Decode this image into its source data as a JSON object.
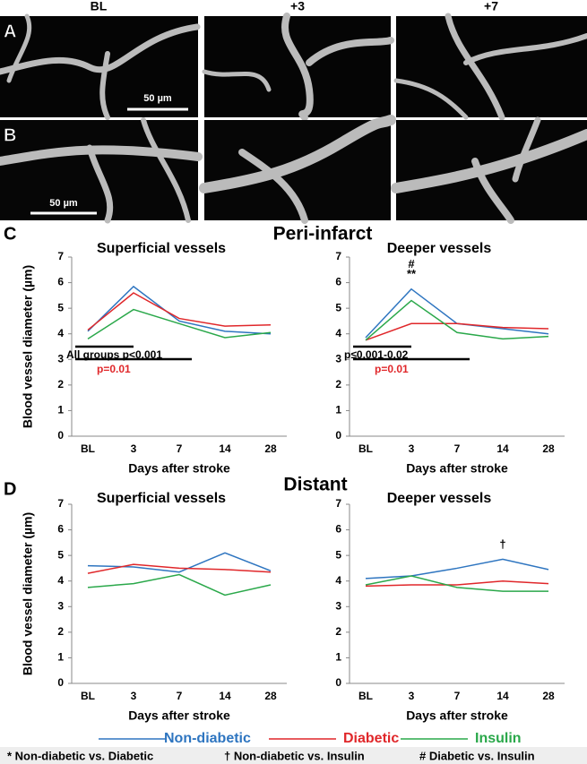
{
  "panels": {
    "A": "A",
    "B": "B",
    "C": "C",
    "D": "D"
  },
  "columns": [
    "BL",
    "+3",
    "+7"
  ],
  "scale_bars": [
    "50 µm",
    "50 µm"
  ],
  "sections": [
    "Peri-infarct",
    "Distant"
  ],
  "footnote": [
    "* Non-diabetic vs. Diabetic",
    "† Non-diabetic vs. Insulin",
    "# Diabetic vs. Insulin"
  ],
  "chart_data": [
    {
      "type": "line",
      "title": "Superficial vessels",
      "ylabel": "Blood vessel diameter (µm)",
      "xlabel": "Days after stroke",
      "categories": [
        "BL",
        "3",
        "7",
        "14",
        "28"
      ],
      "ylim": [
        0,
        7
      ],
      "yticks": [
        0,
        1,
        2,
        3,
        4,
        5,
        6,
        7
      ],
      "series": [
        {
          "name": "Non-diabetic",
          "color": "#2e75c0",
          "values": [
            4.1,
            5.85,
            4.5,
            4.1,
            4.0
          ]
        },
        {
          "name": "Diabetic",
          "color": "#e0272a",
          "values": [
            4.15,
            5.6,
            4.6,
            4.3,
            4.35
          ]
        },
        {
          "name": "Insulin",
          "color": "#2aa84a",
          "values": [
            3.8,
            4.95,
            4.4,
            3.85,
            4.05
          ]
        }
      ],
      "annotations": [
        {
          "text": "All groups p<0.001",
          "from": "BL",
          "to": "3",
          "color": "#000"
        },
        {
          "text": "p=0.01",
          "from": "BL",
          "to": "7",
          "color": "#e0272a"
        }
      ]
    },
    {
      "type": "line",
      "title": "Deeper vessels",
      "xlabel": "Days after stroke",
      "categories": [
        "BL",
        "3",
        "7",
        "14",
        "28"
      ],
      "ylim": [
        0,
        7
      ],
      "yticks": [
        0,
        1,
        2,
        3,
        4,
        5,
        6,
        7
      ],
      "series": [
        {
          "name": "Non-diabetic",
          "color": "#2e75c0",
          "values": [
            3.85,
            5.75,
            4.4,
            4.2,
            4.0
          ]
        },
        {
          "name": "Diabetic",
          "color": "#e0272a",
          "values": [
            3.75,
            4.4,
            4.4,
            4.25,
            4.2
          ]
        },
        {
          "name": "Insulin",
          "color": "#2aa84a",
          "values": [
            3.75,
            5.3,
            4.05,
            3.8,
            3.9
          ]
        }
      ],
      "annotations": [
        {
          "text": "p≤0.001-0.02",
          "from": "BL",
          "to": "3",
          "color": "#000"
        },
        {
          "text": "p=0.01",
          "from": "BL",
          "to": "7",
          "color": "#e0272a"
        }
      ],
      "markers": [
        {
          "text": "#",
          "at": "3"
        },
        {
          "text": "**",
          "at": "3"
        }
      ]
    },
    {
      "type": "line",
      "title": "Superficial vessels",
      "ylabel": "Blood vessel diameter (µm)",
      "xlabel": "Days after stroke",
      "categories": [
        "BL",
        "3",
        "7",
        "14",
        "28"
      ],
      "ylim": [
        0,
        7
      ],
      "yticks": [
        0,
        1,
        2,
        3,
        4,
        5,
        6,
        7
      ],
      "series": [
        {
          "name": "Non-diabetic",
          "color": "#2e75c0",
          "values": [
            4.6,
            4.55,
            4.35,
            5.1,
            4.4
          ]
        },
        {
          "name": "Diabetic",
          "color": "#e0272a",
          "values": [
            4.3,
            4.65,
            4.5,
            4.45,
            4.35
          ]
        },
        {
          "name": "Insulin",
          "color": "#2aa84a",
          "values": [
            3.75,
            3.9,
            4.25,
            3.45,
            3.85
          ]
        }
      ]
    },
    {
      "type": "line",
      "title": "Deeper vessels",
      "xlabel": "Days after stroke",
      "categories": [
        "BL",
        "3",
        "7",
        "14",
        "28"
      ],
      "ylim": [
        0,
        7
      ],
      "yticks": [
        0,
        1,
        2,
        3,
        4,
        5,
        6,
        7
      ],
      "series": [
        {
          "name": "Non-diabetic",
          "color": "#2e75c0",
          "values": [
            4.1,
            4.2,
            4.5,
            4.85,
            4.45
          ]
        },
        {
          "name": "Diabetic",
          "color": "#e0272a",
          "values": [
            3.8,
            3.85,
            3.85,
            4.0,
            3.9
          ]
        },
        {
          "name": "Insulin",
          "color": "#2aa84a",
          "values": [
            3.85,
            4.2,
            3.75,
            3.6,
            3.6
          ]
        }
      ],
      "markers": [
        {
          "text": "†",
          "at": "14"
        }
      ]
    }
  ]
}
